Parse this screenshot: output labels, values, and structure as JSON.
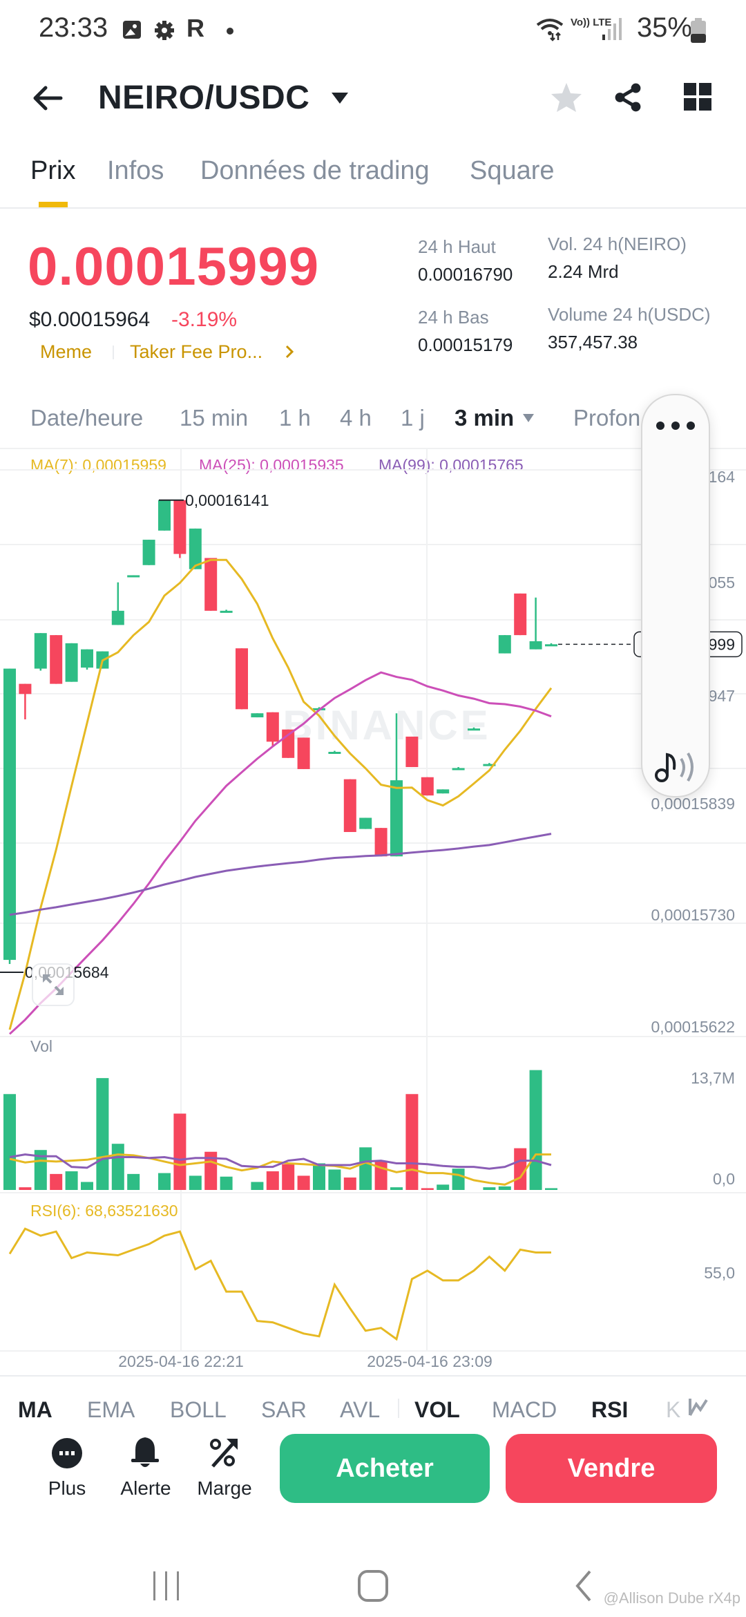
{
  "status_bar": {
    "time": "23:33",
    "left_icons": [
      "gallery-icon",
      "gear-icon",
      "r-app-icon",
      "dot-icon"
    ],
    "network": "Vo)) LTE",
    "battery": "35%"
  },
  "header": {
    "title": "NEIRO/USDC",
    "icons": [
      "back-arrow-icon",
      "dropdown-caret-icon",
      "star-icon",
      "share-icon",
      "grid-icon"
    ]
  },
  "tabs": [
    {
      "label": "Prix",
      "active": true
    },
    {
      "label": "Infos",
      "active": false
    },
    {
      "label": "Données de trading",
      "active": false
    },
    {
      "label": "Square",
      "active": false
    }
  ],
  "ticker": {
    "price": "0.00015999",
    "usd_price": "$0.00015964",
    "change_pct": "-3.19%",
    "tags": [
      "Meme",
      "Taker Fee Pro..."
    ],
    "stats": {
      "high_label": "24 h Haut",
      "high_value": "0.00016790",
      "low_label": "24 h Bas",
      "low_value": "0.00015179",
      "vol_base_label": "Vol. 24 h(NEIRO)",
      "vol_base_value": "2.24 Mrd",
      "vol_quote_label": "Volume 24 h(USDC)",
      "vol_quote_value": "357,457.38"
    }
  },
  "intervals": [
    {
      "label": "Date/heure",
      "active": false
    },
    {
      "label": "15 min",
      "active": false
    },
    {
      "label": "1 h",
      "active": false
    },
    {
      "label": "4 h",
      "active": false
    },
    {
      "label": "1 j",
      "active": false
    },
    {
      "label": "3 min",
      "active": true
    },
    {
      "label": "Profon",
      "active": false
    }
  ],
  "ma_legend": {
    "ma7": "MA(7): 0,00015959",
    "ma25": "MA(25): 0,00015935",
    "ma99": "MA(99): 0,00015765"
  },
  "colors": {
    "up": "#2ebd85",
    "down": "#f6465d",
    "ma7": "#e6b923",
    "ma25": "#cc4fb8",
    "ma99": "#8a5db5",
    "accent": "#f0b90b"
  },
  "chart_data": [
    {
      "type": "candlestick",
      "title": "NEIRO/USDC 3 min",
      "y_axis_labels": [
        "0,00016164",
        "0,00016055",
        "0,00015947",
        "0,00015839",
        "0,00015730",
        "0,00015622"
      ],
      "current_price_tag": "0,00015999",
      "annotations": {
        "high": "0,00016141",
        "low": "0,00015684"
      },
      "watermark": "BINANCE",
      "candles": [
        {
          "o": 0.00015688,
          "h": 0.00015975,
          "l": 0.00015684,
          "c": 0.00015975
        },
        {
          "o": 0.0001596,
          "h": 0.0001596,
          "l": 0.00015925,
          "c": 0.0001595
        },
        {
          "o": 0.00015975,
          "h": 0.0001601,
          "l": 0.00015973,
          "c": 0.0001601
        },
        {
          "o": 0.00016008,
          "h": 0.00016008,
          "l": 0.0001596,
          "c": 0.0001596
        },
        {
          "o": 0.00015962,
          "h": 0.00016,
          "l": 0.00015962,
          "c": 0.00016
        },
        {
          "o": 0.00015976,
          "h": 0.00015994,
          "l": 0.00015974,
          "c": 0.00015994
        },
        {
          "o": 0.00015975,
          "h": 0.00015992,
          "l": 0.00015975,
          "c": 0.00015992
        },
        {
          "o": 0.00016018,
          "h": 0.0001606,
          "l": 0.00016018,
          "c": 0.00016032
        },
        {
          "o": 0.00016067,
          "h": 0.00016067,
          "l": 0.00016066,
          "c": 0.00016067
        },
        {
          "o": 0.00016077,
          "h": 0.00016102,
          "l": 0.00016077,
          "c": 0.00016102
        },
        {
          "o": 0.00016111,
          "h": 0.00016141,
          "l": 0.00016111,
          "c": 0.00016141
        },
        {
          "o": 0.00016141,
          "h": 0.00016141,
          "l": 0.00016084,
          "c": 0.00016088
        },
        {
          "o": 0.00016073,
          "h": 0.00016113,
          "l": 0.00016073,
          "c": 0.00016113
        },
        {
          "o": 0.00016084,
          "h": 0.00016084,
          "l": 0.00016032,
          "c": 0.00016032
        },
        {
          "o": 0.00016032,
          "h": 0.00016033,
          "l": 0.00016031,
          "c": 0.00016032
        },
        {
          "o": 0.00015995,
          "h": 0.00015995,
          "l": 0.00015935,
          "c": 0.00015935
        },
        {
          "o": 0.00015927,
          "h": 0.00015931,
          "l": 0.00015927,
          "c": 0.00015931
        },
        {
          "o": 0.00015932,
          "h": 0.00015932,
          "l": 0.00015899,
          "c": 0.00015903
        },
        {
          "o": 0.00015915,
          "h": 0.00015915,
          "l": 0.00015887,
          "c": 0.00015887
        },
        {
          "o": 0.00015907,
          "h": 0.00015907,
          "l": 0.00015876,
          "c": 0.00015876
        },
        {
          "o": 0.00015936,
          "h": 0.00015937,
          "l": 0.00015935,
          "c": 0.00015936
        },
        {
          "o": 0.00015893,
          "h": 0.00015894,
          "l": 0.00015892,
          "c": 0.00015893
        },
        {
          "o": 0.00015866,
          "h": 0.00015866,
          "l": 0.00015814,
          "c": 0.00015814
        },
        {
          "o": 0.00015817,
          "h": 0.00015828,
          "l": 0.00015817,
          "c": 0.00015828
        },
        {
          "o": 0.00015818,
          "h": 0.00015818,
          "l": 0.0001579,
          "c": 0.0001579
        },
        {
          "o": 0.0001579,
          "h": 0.00015931,
          "l": 0.0001579,
          "c": 0.00015865
        },
        {
          "o": 0.00015908,
          "h": 0.00015908,
          "l": 0.00015878,
          "c": 0.00015878
        },
        {
          "o": 0.00015868,
          "h": 0.00015868,
          "l": 0.0001585,
          "c": 0.0001585
        },
        {
          "o": 0.00015852,
          "h": 0.00015856,
          "l": 0.00015852,
          "c": 0.00015856
        },
        {
          "o": 0.00015877,
          "h": 0.00015878,
          "l": 0.00015876,
          "c": 0.00015877
        },
        {
          "o": 0.00015916,
          "h": 0.00015917,
          "l": 0.00015915,
          "c": 0.00015916
        },
        {
          "o": 0.00015881,
          "h": 0.00015882,
          "l": 0.0001588,
          "c": 0.00015881
        },
        {
          "o": 0.0001599,
          "h": 0.00016008,
          "l": 0.0001599,
          "c": 0.00016008
        },
        {
          "o": 0.00016049,
          "h": 0.00016049,
          "l": 0.00016008,
          "c": 0.00016008
        },
        {
          "o": 0.00015994,
          "h": 0.00016045,
          "l": 0.00015994,
          "c": 0.00016002
        },
        {
          "o": 0.00015999,
          "h": 0.00016,
          "l": 0.00015998,
          "c": 0.00015999
        }
      ]
    },
    {
      "type": "bar",
      "title": "Vol",
      "y_axis_labels": [
        "13,7M",
        "0,0"
      ],
      "ymax": 15.2,
      "values_M": [
        10.8,
        0.3,
        4.5,
        1.8,
        2.1,
        0.9,
        12.6,
        5.2,
        1.8,
        0,
        1.9,
        8.6,
        1.6,
        4.3,
        1.5,
        0,
        0.9,
        2.1,
        2.9,
        1.6,
        3.0,
        2.3,
        1.4,
        4.8,
        3.3,
        0.3,
        10.8,
        0.2,
        0.6,
        2.4,
        0,
        0.3,
        0.4,
        4.7,
        13.5,
        0.2
      ],
      "ma_line_1": [
        3.5,
        3.1,
        3.3,
        3.2,
        3.3,
        3.4,
        3.7,
        4.0,
        3.9,
        3.6,
        3.2,
        2.8,
        3.0,
        3.2,
        2.6,
        2.2,
        2.5,
        3.2,
        3.0,
        2.9,
        2.8,
        2.7,
        2.4,
        3.1,
        2.5,
        2.0,
        2.3,
        1.9,
        1.9,
        1.7,
        1.1,
        0.8,
        0.6,
        1.4,
        4.0,
        4.0
      ],
      "ma_line_2": [
        3.7,
        4.0,
        3.8,
        3.8,
        2.6,
        2.5,
        3.5,
        3.7,
        3.7,
        3.6,
        3.7,
        3.4,
        3.6,
        3.6,
        3.5,
        2.7,
        2.6,
        2.6,
        3.3,
        3.5,
        2.8,
        2.8,
        2.8,
        3.2,
        3.3,
        3.0,
        3.0,
        2.9,
        2.7,
        2.6,
        2.6,
        2.4,
        2.6,
        3.3,
        3.3,
        2.8
      ]
    },
    {
      "type": "line",
      "title": "RSI(6): 68,63521630",
      "y_axis_labels": [
        "55,0"
      ],
      "x_tick_labels": [
        "2025-04-16 22:21",
        "2025-04-16 23:09"
      ],
      "values": [
        67,
        85,
        80,
        83,
        64,
        68,
        67,
        66,
        70,
        74,
        80,
        83,
        56,
        62,
        40,
        40,
        19,
        18,
        14,
        10,
        8,
        45,
        28,
        12,
        14,
        6,
        49,
        55,
        48,
        48,
        55,
        65,
        55,
        70,
        68,
        68
      ]
    }
  ],
  "indicators": [
    {
      "label": "MA",
      "active": true
    },
    {
      "label": "EMA",
      "active": false
    },
    {
      "label": "BOLL",
      "active": false
    },
    {
      "label": "SAR",
      "active": false
    },
    {
      "label": "AVL",
      "active": false
    },
    {
      "label": "VOL",
      "active": true
    },
    {
      "label": "MACD",
      "active": false
    },
    {
      "label": "RSI",
      "active": true
    },
    {
      "label": "K",
      "active": false
    }
  ],
  "bottom_actions": [
    {
      "label": "Plus",
      "icon": "more-icon"
    },
    {
      "label": "Alerte",
      "icon": "bell-icon"
    },
    {
      "label": "Marge",
      "icon": "margin-percent-icon"
    }
  ],
  "buy_label": "Acheter",
  "sell_label": "Vendre",
  "watermark_user": "@Allison Dube rX4p"
}
